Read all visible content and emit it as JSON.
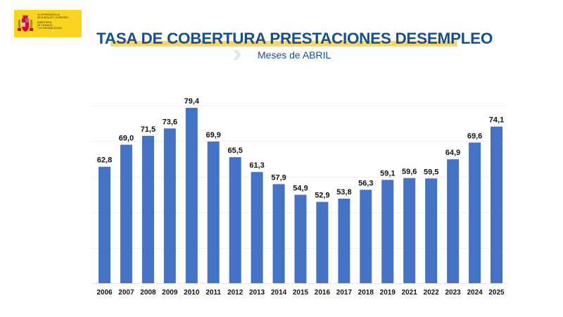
{
  "logo": {
    "line1": "Vicepresidencia",
    "line2": "Segunda del Gobierno",
    "line3": "Ministerio",
    "line4": "de Trabajo",
    "line5": "y Economía Social",
    "background_color": "#f9d521"
  },
  "header": {
    "title": "TASA DE COBERTURA PRESTACIONES DESEMPLEO",
    "subtitle": "Meses de ABRIL",
    "subtitle_icon": "chevron-right-icon",
    "title_color": "#17508a",
    "accent_color": "#fbd66a"
  },
  "chart_data": {
    "type": "bar",
    "title": "TASA DE COBERTURA PRESTACIONES DESEMPLEO",
    "subtitle": "Meses de ABRIL",
    "xlabel": "",
    "ylabel": "",
    "categories": [
      "2006",
      "2007",
      "2008",
      "2009",
      "2010",
      "2011",
      "2012",
      "2013",
      "2014",
      "2015",
      "2016",
      "2017",
      "2018",
      "2019",
      "2021",
      "2022",
      "2023",
      "2024",
      "2025"
    ],
    "values": [
      62.8,
      69.0,
      71.5,
      73.6,
      79.4,
      69.9,
      65.5,
      61.3,
      57.9,
      54.9,
      52.9,
      53.8,
      56.3,
      59.1,
      59.6,
      59.5,
      64.9,
      69.6,
      74.1
    ],
    "value_labels": [
      "62,8",
      "69,0",
      "71,5",
      "73,6",
      "79,4",
      "69,9",
      "65,5",
      "61,3",
      "57,9",
      "54,9",
      "52,9",
      "53,8",
      "56,3",
      "59,1",
      "59,6",
      "59,5",
      "64,9",
      "69,6",
      "74,1"
    ],
    "ylim": [
      30,
      80
    ],
    "yticks": [
      30,
      40,
      50,
      60,
      70,
      80
    ],
    "y_tick_labels_visible": false,
    "grid": true,
    "legend": "none",
    "bar_color": "#4472c4"
  }
}
